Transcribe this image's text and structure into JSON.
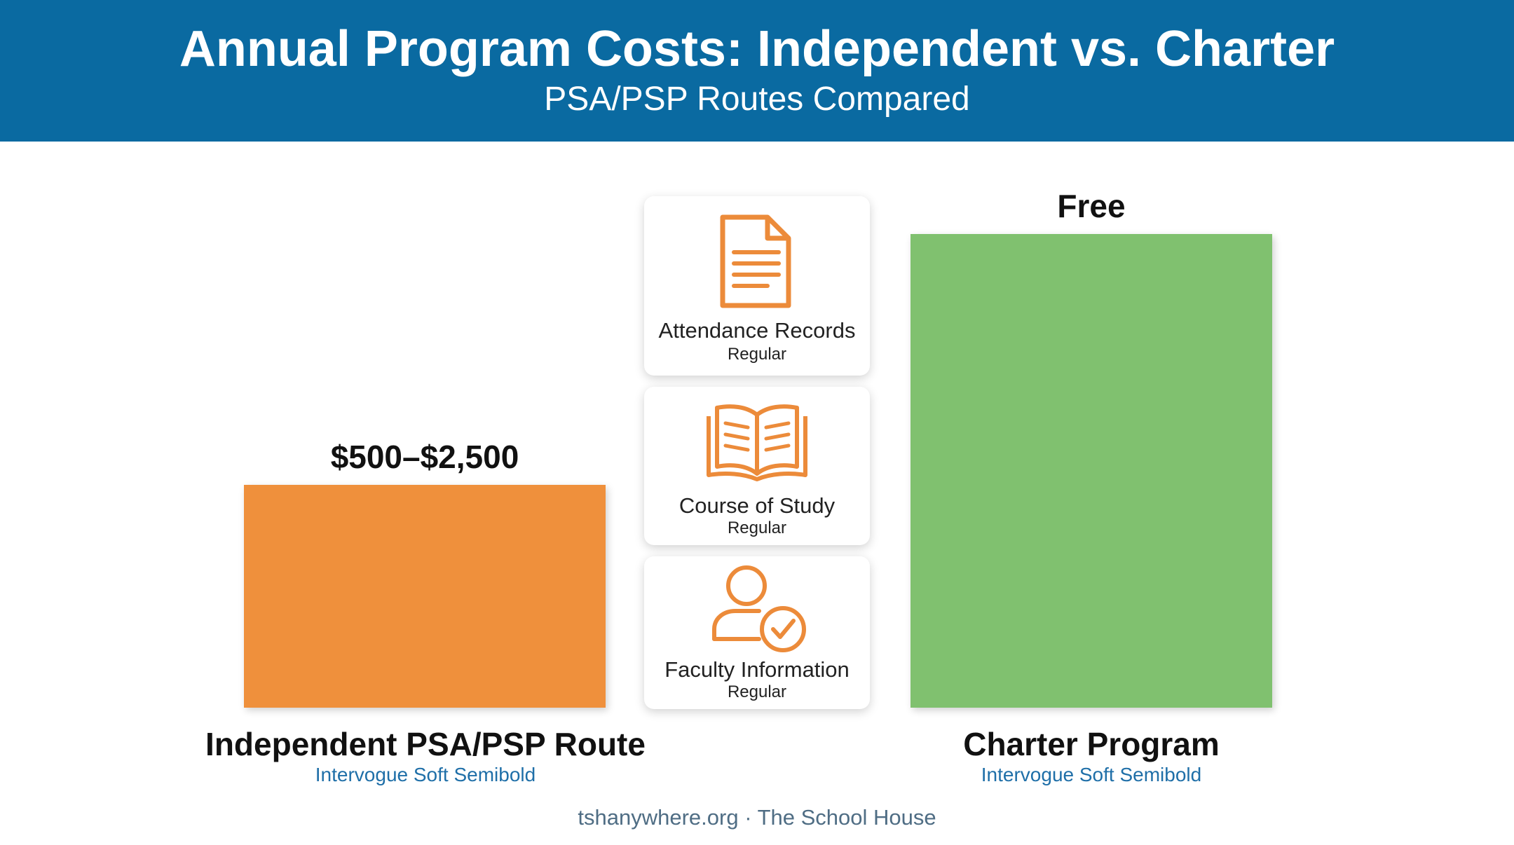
{
  "header": {
    "title": "Annual Program Costs: Independent vs. Charter",
    "subtitle": "PSA/PSP Routes Compared"
  },
  "chart_data": {
    "type": "bar",
    "title": "Annual Program Costs: Independent vs. Charter",
    "subtitle": "PSA/PSP Routes Compared",
    "categories": [
      "Independent PSA/PSP Route",
      "Charter Program"
    ],
    "category_sublabels": [
      "Intervogue Soft Semibold",
      "Intervogue Soft Semibold"
    ],
    "value_labels": [
      "$500–$2,500",
      "Free"
    ],
    "relative_heights": [
      0.47,
      1.0
    ],
    "colors": [
      "#ef903c",
      "#80c16f"
    ],
    "grid": false,
    "legend": "none"
  },
  "requirements": [
    {
      "title": "Attendance Records",
      "sub": "Regular",
      "icon": "document-icon"
    },
    {
      "title": "Course of Study",
      "sub": "Regular",
      "icon": "open-book-icon"
    },
    {
      "title": "Faculty Information",
      "sub": "Regular",
      "icon": "person-check-icon"
    }
  ],
  "footer": "tshanywhere.org · The School House",
  "colors": {
    "header": "#0a6aa1",
    "icon": "#ec8b3a"
  }
}
